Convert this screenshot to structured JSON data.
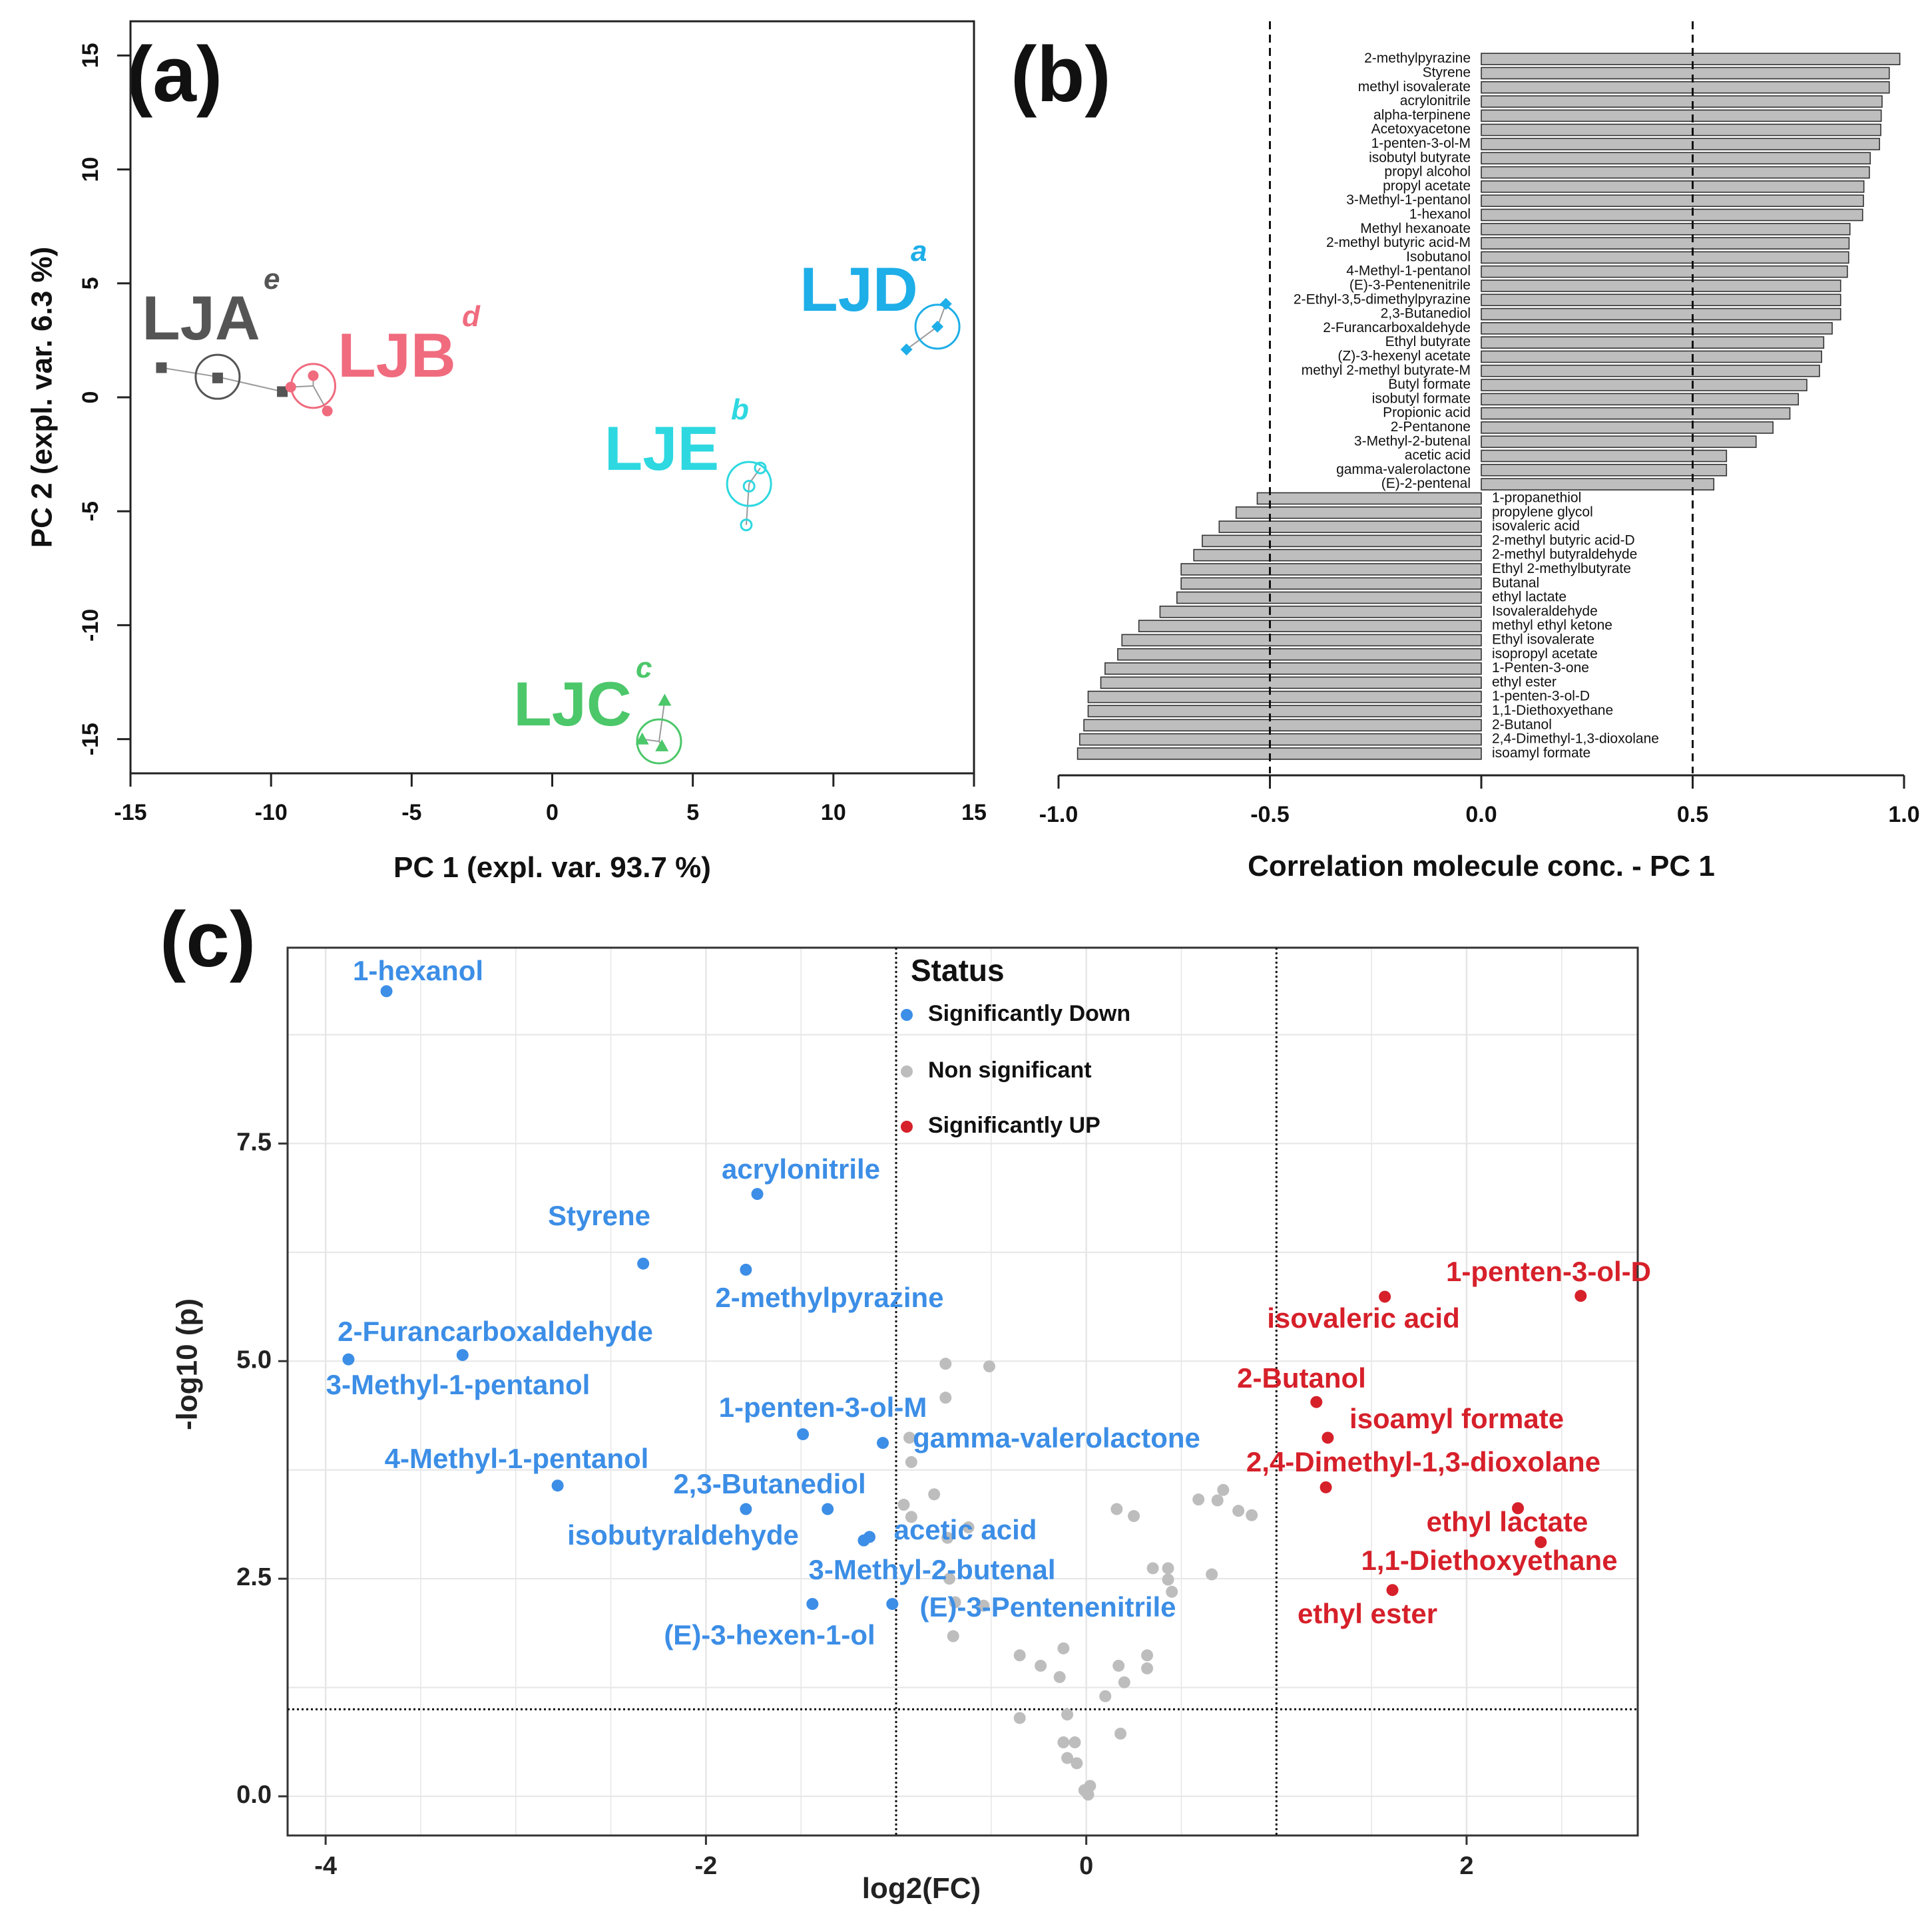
{
  "chart_data": [
    {
      "panel": "(a)",
      "type": "scatter",
      "xlabel": "PC 1 (expl. var. 93.7 %)",
      "ylabel": "PC 2 (expl. var. 6.3 %)",
      "xlim": [
        -15,
        15
      ],
      "ylim": [
        -16.5,
        16.5
      ],
      "xticks": [
        -15,
        -10,
        -5,
        0,
        5,
        10,
        15
      ],
      "yticks": [
        -15,
        -10,
        -5,
        0,
        5,
        10,
        15
      ],
      "groups": [
        {
          "name": "LJA",
          "letter": "e",
          "color": "#555555",
          "marker": "square",
          "centroid": [
            -11.9,
            0.9
          ],
          "points": [
            [
              -13.9,
              1.3
            ],
            [
              -11.9,
              0.85
            ],
            [
              -9.6,
              0.25
            ]
          ]
        },
        {
          "name": "LJB",
          "letter": "d",
          "color": "#F06B7E",
          "marker": "circle",
          "centroid": [
            -8.5,
            0.5
          ],
          "points": [
            [
              -8.5,
              0.95
            ],
            [
              -9.3,
              0.45
            ],
            [
              -8.0,
              -0.6
            ]
          ]
        },
        {
          "name": "LJC",
          "letter": "c",
          "color": "#4CC76A",
          "marker": "triangle",
          "centroid": [
            3.8,
            -15.1
          ],
          "points": [
            [
              4.0,
              -13.3
            ],
            [
              3.2,
              -15.0
            ],
            [
              3.9,
              -15.3
            ]
          ]
        },
        {
          "name": "LJD",
          "letter": "a",
          "color": "#1EAEE8",
          "marker": "diamond",
          "centroid": [
            13.7,
            3.1
          ],
          "points": [
            [
              14.0,
              4.1
            ],
            [
              13.7,
              3.1
            ],
            [
              12.6,
              2.1
            ]
          ]
        },
        {
          "name": "LJE",
          "letter": "b",
          "color": "#2ED8E0",
          "marker": "open-circle",
          "centroid": [
            7.0,
            -3.8
          ],
          "points": [
            [
              7.4,
              -3.1
            ],
            [
              7.0,
              -3.9
            ],
            [
              6.9,
              -5.6
            ]
          ]
        }
      ]
    },
    {
      "panel": "(b)",
      "type": "bar",
      "orientation": "horizontal",
      "xlabel": "Correlation molecule conc. - PC 1",
      "xlim": [
        -1.0,
        1.0
      ],
      "xticks": [
        "-1.0",
        "-0.5",
        "0.0",
        "0.5",
        "1.0"
      ],
      "reference_lines": [
        -0.5,
        0.5
      ],
      "categories": [
        "2-methylpyrazine",
        "Styrene",
        "methyl isovalerate",
        "acrylonitrile",
        "alpha-terpinene",
        "Acetoxyacetone",
        "1-penten-3-ol-M",
        "isobutyl butyrate",
        "propyl alcohol",
        "propyl acetate",
        "3-Methyl-1-pentanol",
        "1-hexanol",
        "Methyl hexanoate",
        "2-methyl butyric acid-M",
        "Isobutanol",
        "4-Methyl-1-pentanol",
        "(E)-3-Pentenenitrile",
        "2-Ethyl-3,5-dimethylpyrazine",
        "2,3-Butanediol",
        "2-Furancarboxaldehyde",
        "Ethyl butyrate",
        "(Z)-3-hexenyl acetate",
        "methyl 2-methyl butyrate-M",
        "Butyl formate",
        "isobutyl formate",
        "Propionic acid",
        "2-Pentanone",
        "3-Methyl-2-butenal",
        "acetic acid",
        "gamma-valerolactone",
        "(E)-2-pentenal",
        "1-propanethiol",
        "propylene glycol",
        "isovaleric acid",
        "2-methyl butyric acid-D",
        "2-methyl butyraldehyde",
        "Ethyl 2-methylbutyrate",
        "Butanal",
        "ethyl lactate",
        "Isovaleraldehyde",
        "methyl ethyl ketone",
        "Ethyl isovalerate",
        "isopropyl acetate",
        "1-Penten-3-one",
        "ethyl ester",
        "1-penten-3-ol-D",
        "1,1-Diethoxyethane",
        "2-Butanol",
        "2,4-Dimethyl-1,3-dioxolane",
        "isoamyl formate"
      ],
      "values": [
        0.99,
        0.965,
        0.965,
        0.948,
        0.946,
        0.945,
        0.942,
        0.92,
        0.918,
        0.905,
        0.904,
        0.902,
        0.872,
        0.87,
        0.869,
        0.866,
        0.85,
        0.85,
        0.85,
        0.83,
        0.81,
        0.805,
        0.8,
        0.77,
        0.75,
        0.73,
        0.69,
        0.65,
        0.58,
        0.58,
        0.55,
        -0.53,
        -0.58,
        -0.62,
        -0.66,
        -0.68,
        -0.71,
        -0.71,
        -0.72,
        -0.76,
        -0.81,
        -0.85,
        -0.86,
        -0.89,
        -0.9,
        -0.93,
        -0.93,
        -0.94,
        -0.95,
        -0.955
      ]
    },
    {
      "panel": "(c)",
      "type": "scatter",
      "subtype": "volcano",
      "xlabel": "log2(FC)",
      "ylabel": "-log10 (p)",
      "xlim": [
        -4.2,
        2.9
      ],
      "ylim": [
        -0.45,
        9.75
      ],
      "xticks": [
        -4,
        -2,
        0,
        2
      ],
      "yticks": [
        "0.0",
        "2.5",
        "5.0",
        "7.5"
      ],
      "threshold_x": [
        -1,
        1
      ],
      "threshold_y": 1.0,
      "legend": {
        "title": "Status",
        "entries": [
          "Significantly Down",
          "Non significant",
          "Significantly UP"
        ]
      },
      "colors": {
        "down": "#3C8EE6",
        "ns": "#BDBDBD",
        "up": "#D6202A"
      },
      "down": [
        {
          "name": "1-hexanol",
          "x": -3.68,
          "y": 9.25
        },
        {
          "name": "acrylonitrile",
          "x": -1.73,
          "y": 6.92
        },
        {
          "name": "Styrene",
          "x": -2.33,
          "y": 6.12
        },
        {
          "name": "2-methylpyrazine",
          "x": -1.79,
          "y": 6.05
        },
        {
          "name": "2-Furancarboxaldehyde",
          "x": -3.28,
          "y": 5.07
        },
        {
          "name": "3-Methyl-1-pentanol",
          "x": -3.88,
          "y": 5.02
        },
        {
          "name": "1-penten-3-ol-M",
          "x": -1.49,
          "y": 4.16
        },
        {
          "name": "gamma-valerolactone",
          "x": -1.07,
          "y": 4.06
        },
        {
          "name": "4-Methyl-1-pentanol",
          "x": -2.78,
          "y": 3.57
        },
        {
          "name": "2,3-Butanediol",
          "x": -1.36,
          "y": 3.3
        },
        {
          "name": "isobutyraldehyde",
          "x": -1.79,
          "y": 3.3
        },
        {
          "name": "acetic acid",
          "x": -1.14,
          "y": 2.98
        },
        {
          "name": "3-Methyl-2-butenal",
          "x": -1.17,
          "y": 2.94
        },
        {
          "name": "(E)-3-Pentenenitrile",
          "x": -1.02,
          "y": 2.21
        },
        {
          "name": "(E)-3-hexen-1-ol",
          "x": -1.44,
          "y": 2.21
        }
      ],
      "up": [
        {
          "name": "1-penten-3-ol-D",
          "x": 2.6,
          "y": 5.75
        },
        {
          "name": "isovaleric acid",
          "x": 1.57,
          "y": 5.74
        },
        {
          "name": "2-Butanol",
          "x": 1.21,
          "y": 4.53
        },
        {
          "name": "isoamyl formate",
          "x": 1.27,
          "y": 4.12
        },
        {
          "name": "2,4-Dimethyl-1,3-dioxolane",
          "x": 1.26,
          "y": 3.55
        },
        {
          "name": "ethyl lactate",
          "x": 2.27,
          "y": 3.31
        },
        {
          "name": "1,1-Diethoxyethane",
          "x": 2.39,
          "y": 2.92
        },
        {
          "name": "ethyl ester",
          "x": 1.61,
          "y": 2.37
        }
      ],
      "ns": [
        [
          -0.74,
          4.97
        ],
        [
          -0.51,
          4.94
        ],
        [
          -0.74,
          4.58
        ],
        [
          -0.93,
          4.12
        ],
        [
          -0.92,
          3.84
        ],
        [
          -0.8,
          3.47
        ],
        [
          -0.96,
          3.35
        ],
        [
          -0.92,
          3.21
        ],
        [
          -0.73,
          2.97
        ],
        [
          -0.62,
          3.09
        ],
        [
          -0.72,
          2.5
        ],
        [
          -0.69,
          2.23
        ],
        [
          -0.54,
          2.19
        ],
        [
          -0.7,
          1.84
        ],
        [
          -0.35,
          1.62
        ],
        [
          -0.24,
          1.5
        ],
        [
          -0.12,
          1.7
        ],
        [
          -0.14,
          1.37
        ],
        [
          0.16,
          3.3
        ],
        [
          0.25,
          3.22
        ],
        [
          0.35,
          2.62
        ],
        [
          0.43,
          2.62
        ],
        [
          0.43,
          2.49
        ],
        [
          0.45,
          2.35
        ],
        [
          0.59,
          3.41
        ],
        [
          0.72,
          3.52
        ],
        [
          0.69,
          3.4
        ],
        [
          0.66,
          2.55
        ],
        [
          0.8,
          3.28
        ],
        [
          0.87,
          3.23
        ],
        [
          0.17,
          1.5
        ],
        [
          0.2,
          1.31
        ],
        [
          0.1,
          1.15
        ],
        [
          0.32,
          1.62
        ],
        [
          0.32,
          1.47
        ],
        [
          -0.35,
          0.9
        ],
        [
          -0.1,
          0.94
        ],
        [
          -0.12,
          0.62
        ],
        [
          -0.06,
          0.62
        ],
        [
          -0.1,
          0.44
        ],
        [
          -0.05,
          0.38
        ],
        [
          0.18,
          0.72
        ],
        [
          0.02,
          0.12
        ],
        [
          -0.01,
          0.07
        ],
        [
          0.01,
          0.02
        ]
      ]
    }
  ]
}
